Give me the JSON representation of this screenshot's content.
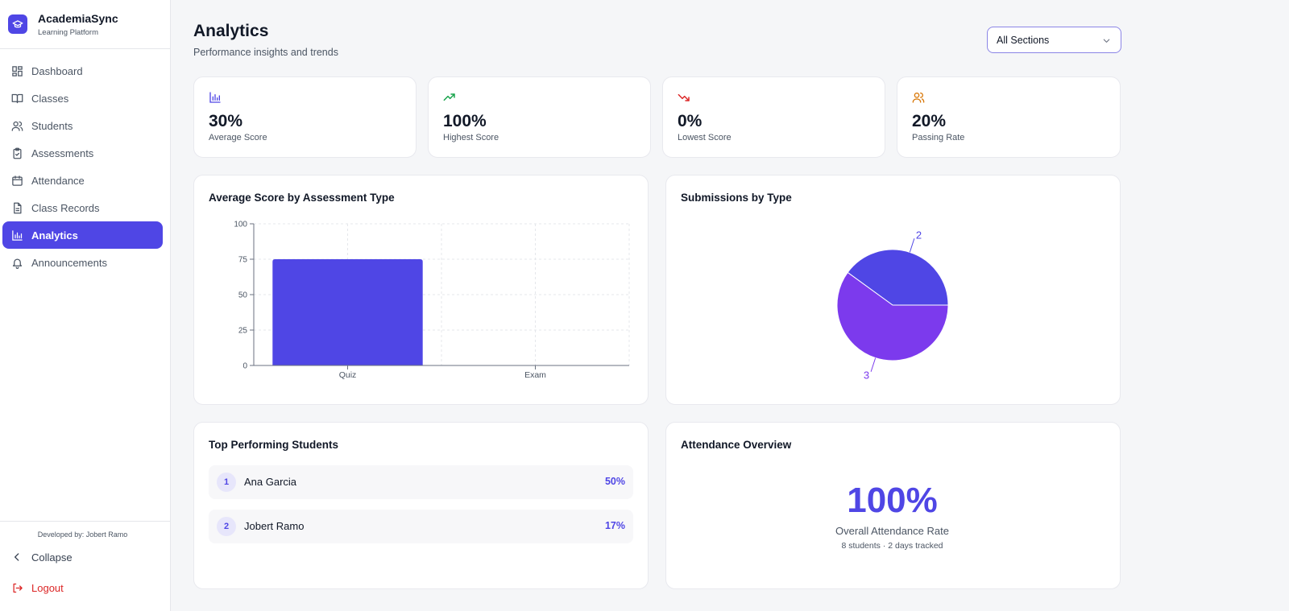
{
  "app": {
    "name": "AcademiaSync",
    "tagline": "Learning Platform"
  },
  "sidebar": {
    "items": [
      {
        "label": "Dashboard",
        "icon": "dashboard-icon"
      },
      {
        "label": "Classes",
        "icon": "book-icon"
      },
      {
        "label": "Students",
        "icon": "users-icon"
      },
      {
        "label": "Assessments",
        "icon": "clipboard-check-icon"
      },
      {
        "label": "Attendance",
        "icon": "calendar-icon"
      },
      {
        "label": "Class Records",
        "icon": "file-text-icon"
      },
      {
        "label": "Analytics",
        "icon": "bar-chart-icon",
        "active": true
      },
      {
        "label": "Announcements",
        "icon": "bell-icon"
      }
    ],
    "developer_credit": "Developed by: Jobert Ramo",
    "collapse_label": "Collapse",
    "logout_label": "Logout"
  },
  "header": {
    "title": "Analytics",
    "subtitle": "Performance insights and trends",
    "section_filter": {
      "selected": "All Sections"
    }
  },
  "stats": [
    {
      "value": "30%",
      "label": "Average Score",
      "icon": "bar-chart-icon",
      "color": "#4f46e5"
    },
    {
      "value": "100%",
      "label": "Highest Score",
      "icon": "trending-up-icon",
      "color": "#16a34a"
    },
    {
      "value": "0%",
      "label": "Lowest Score",
      "icon": "trending-down-icon",
      "color": "#dc2626"
    },
    {
      "value": "20%",
      "label": "Passing Rate",
      "icon": "users-icon",
      "color": "#d97706"
    }
  ],
  "bar_card": {
    "title": "Average Score by Assessment Type"
  },
  "pie_card": {
    "title": "Submissions by Type"
  },
  "chart_data": [
    {
      "type": "bar",
      "title": "Average Score by Assessment Type",
      "categories": [
        "Quiz",
        "Exam"
      ],
      "values": [
        75,
        0
      ],
      "ylim": [
        0,
        100
      ],
      "yticks": [
        0,
        25,
        50,
        75,
        100
      ],
      "grid": true,
      "color": "#4f46e5"
    },
    {
      "type": "pie",
      "title": "Submissions by Type",
      "slices": [
        {
          "value": 2,
          "label": "2",
          "color": "#4f46e5"
        },
        {
          "value": 3,
          "label": "3",
          "color": "#7c3aed"
        }
      ]
    }
  ],
  "top_students": {
    "title": "Top Performing Students",
    "rows": [
      {
        "rank": "1",
        "name": "Ana Garcia",
        "score": "50%"
      },
      {
        "rank": "2",
        "name": "Jobert Ramo",
        "score": "17%"
      }
    ]
  },
  "attendance": {
    "title": "Attendance Overview",
    "rate": "100%",
    "label": "Overall Attendance Rate",
    "detail": "8 students · 2 days tracked"
  }
}
